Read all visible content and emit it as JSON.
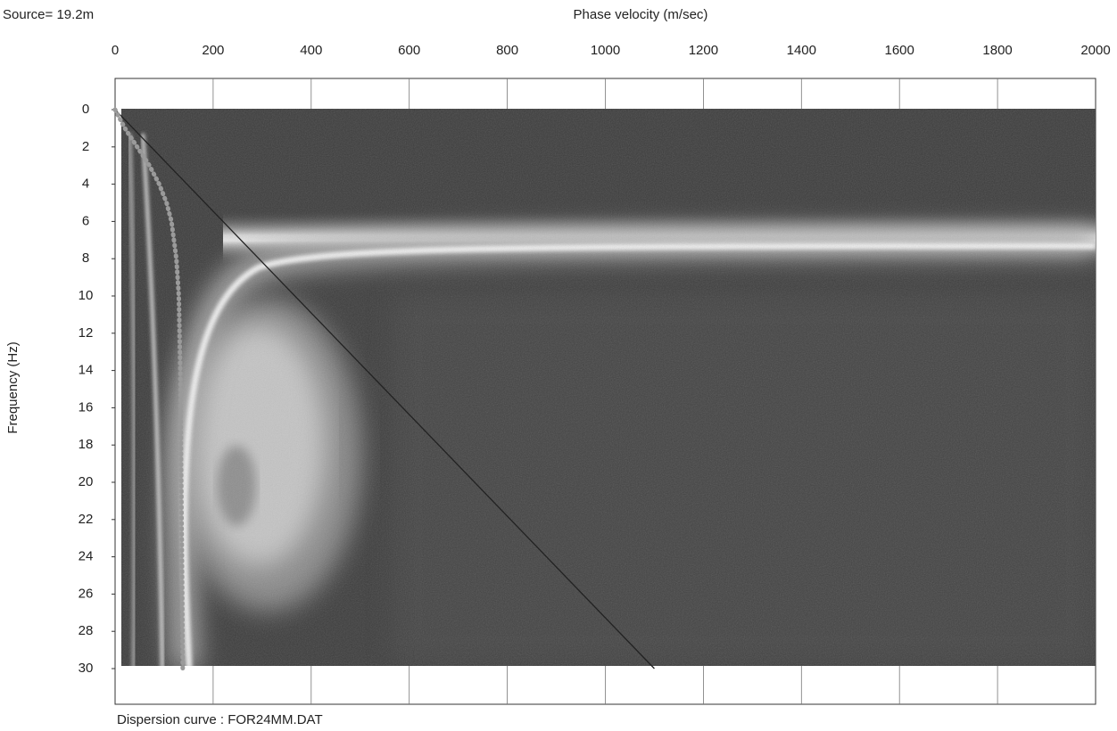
{
  "chart_data": {
    "type": "dispersion-image",
    "source_label": "Source= 19.2m",
    "x_label": "Phase velocity (m/sec)",
    "y_label": "Frequency (Hz)",
    "footer": "Dispersion curve : FOR24MM.DAT",
    "xlim": [
      0,
      2000
    ],
    "xticks": [
      0,
      200,
      400,
      600,
      800,
      1000,
      1200,
      1400,
      1600,
      1800,
      2000
    ],
    "ylim": [
      0,
      30
    ],
    "yticks": [
      0,
      2,
      4,
      6,
      8,
      10,
      12,
      14,
      16,
      18,
      20,
      22,
      24,
      26,
      28,
      30
    ],
    "y_inverted": true,
    "x_axis_position": "top",
    "grid": true,
    "curve": {
      "color": "#9a9a9a",
      "x": [
        0,
        20,
        45,
        70,
        90,
        105,
        115,
        125,
        130,
        133,
        135,
        137,
        138
      ],
      "values": [
        0,
        1,
        2,
        3,
        4,
        5,
        6,
        8,
        10,
        14,
        20,
        26,
        30
      ]
    },
    "reference_line": {
      "color": "#222222",
      "x": [
        0,
        1100
      ],
      "values": [
        0,
        30
      ]
    }
  }
}
